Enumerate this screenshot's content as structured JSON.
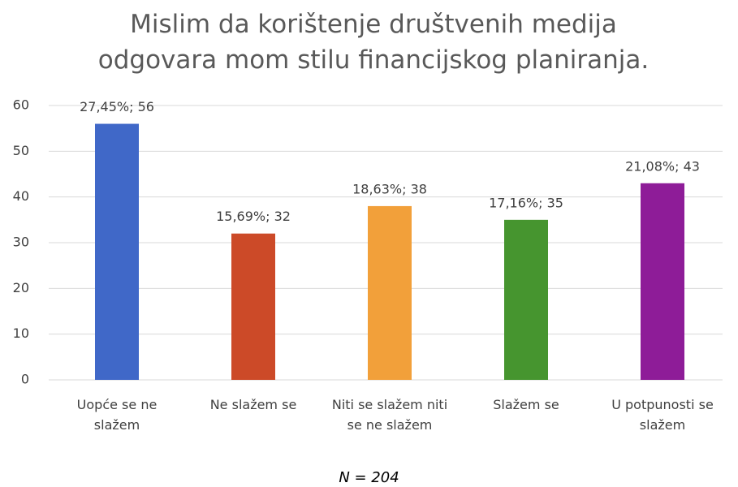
{
  "chart_data": {
    "type": "bar",
    "title": "Mislim da korištenje društvenih medija odgovara mom stilu financijskog planiranja.",
    "categories": [
      "Uopće se ne slažem",
      "Ne slažem se",
      "Niti se slažem niti se ne slažem",
      "Slažem se",
      "U potpunosti se slažem"
    ],
    "values": [
      56,
      32,
      38,
      35,
      43
    ],
    "value_labels": [
      "27,45%; 56",
      "15,69%; 32",
      "18,63%; 38",
      "17,16%; 35",
      "21,08%; 43"
    ],
    "colors": [
      "#4068c8",
      "#cc4a28",
      "#f2a03a",
      "#46952f",
      "#8e1c98"
    ],
    "ylim": [
      0,
      60
    ],
    "yticks": [
      0,
      10,
      20,
      30,
      40,
      50,
      60
    ],
    "grid": true,
    "note": "N = 204"
  }
}
